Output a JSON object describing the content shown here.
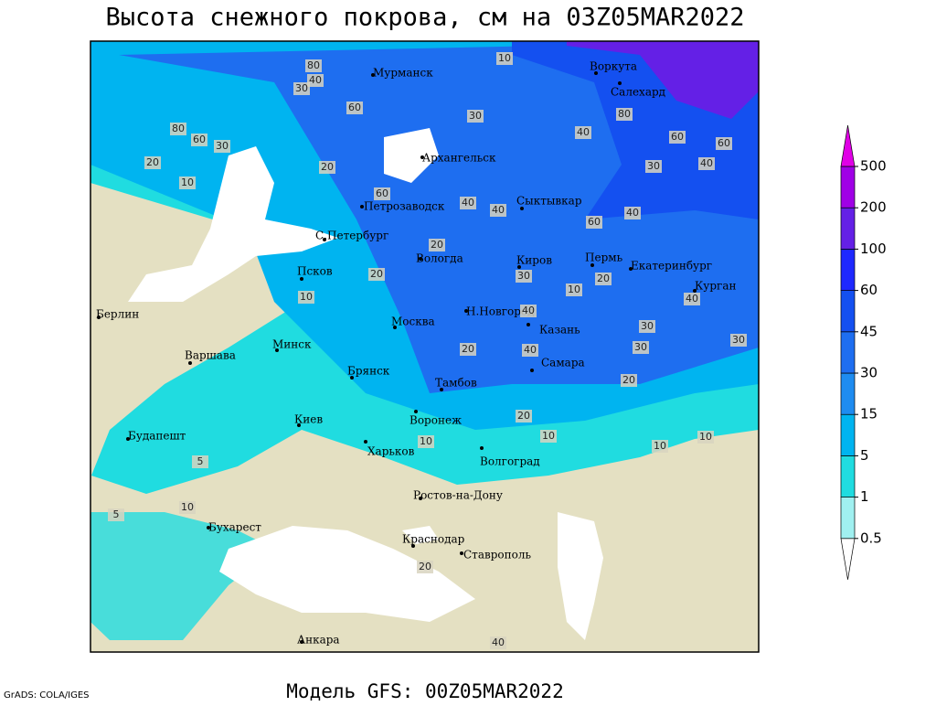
{
  "header": {
    "title": "Высота снежного покрова, см на 03Z05MAR2022"
  },
  "footer": {
    "model": "Модель GFS: 00Z05MAR2022",
    "credit": "GrADS: COLA/IGES"
  },
  "cities": [
    "Мурманск",
    "Воркута",
    "Салехард",
    "Архангельск",
    "Петрозаводск",
    "Сыктывкар",
    "С.Петербург",
    "Вологда",
    "Киров",
    "Пермь",
    "Екатеринбург",
    "Псков",
    "Курган",
    "Н.Новгород",
    "Берлин",
    "Москва",
    "Казань",
    "Минск",
    "Варшава",
    "Самара",
    "Брянск",
    "Тамбов",
    "Воронеж",
    "Киев",
    "Будапешт",
    "Харьков",
    "Волгоград",
    "Ростов-на-Дону",
    "Бухарест",
    "Краснодар",
    "Ставрополь",
    "Анкара"
  ],
  "contour_labels": [
    10,
    80,
    40,
    30,
    60,
    80,
    60,
    30,
    20,
    10,
    20,
    60,
    40,
    40,
    20,
    80,
    60,
    60,
    40,
    30,
    40,
    60,
    40,
    30,
    20,
    10,
    30,
    20,
    40,
    30,
    30,
    10,
    40,
    30,
    20,
    40,
    20,
    20,
    10,
    10,
    10,
    5,
    10,
    5,
    10,
    20,
    40
  ],
  "legend": {
    "levels": [
      0.5,
      1,
      5,
      15,
      30,
      45,
      60,
      100,
      200,
      500
    ],
    "colors": [
      "#ffffff",
      "#a0f0f0",
      "#20dce0",
      "#00b4f0",
      "#1e8cf0",
      "#1e6ef0",
      "#1450f0",
      "#1e28ff",
      "#6420e6",
      "#a000e6",
      "#e000e6"
    ]
  }
}
